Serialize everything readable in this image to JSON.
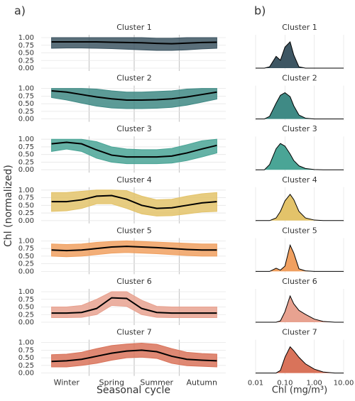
{
  "chart_data": [
    {
      "type": "line",
      "panel_label": "a)",
      "xlabel": "Seasonal cycle",
      "ylabel": "Chl (normalized)",
      "categories": [
        "Winter",
        "Spring",
        "Summer",
        "Autumn"
      ],
      "ylim": [
        0,
        1
      ],
      "yticks": [
        {
          "value": 0,
          "label": "0.00"
        },
        {
          "value": 0.25,
          "label": "0.25"
        },
        {
          "value": 0.5,
          "label": "0.50"
        },
        {
          "value": 0.75,
          "label": "0.75"
        },
        {
          "value": 1,
          "label": "1.00"
        }
      ],
      "grid": true,
      "line_color": "#000000",
      "panels": [
        {
          "title": "Cluster 1",
          "color": "#3d5663",
          "mean": [
            0.86,
            0.86,
            0.86,
            0.86,
            0.85,
            0.84,
            0.83,
            0.81,
            0.8,
            0.82,
            0.84,
            0.85
          ],
          "lower": [
            0.65,
            0.66,
            0.66,
            0.65,
            0.64,
            0.62,
            0.6,
            0.58,
            0.58,
            0.6,
            0.63,
            0.65
          ],
          "upper": [
            1,
            1,
            1,
            1,
            1,
            1,
            1,
            0.98,
            0.98,
            1,
            1,
            1
          ]
        },
        {
          "title": "Cluster 2",
          "color": "#3f8a85",
          "mean": [
            0.92,
            0.88,
            0.8,
            0.72,
            0.66,
            0.62,
            0.62,
            0.63,
            0.66,
            0.72,
            0.8,
            0.88
          ],
          "lower": [
            0.7,
            0.62,
            0.52,
            0.42,
            0.36,
            0.34,
            0.34,
            0.35,
            0.38,
            0.45,
            0.55,
            0.65
          ],
          "upper": [
            1,
            1,
            1,
            0.98,
            0.92,
            0.88,
            0.88,
            0.9,
            0.92,
            0.98,
            1,
            1
          ]
        },
        {
          "title": "Cluster 3",
          "color": "#4aa596",
          "mean": [
            0.85,
            0.9,
            0.85,
            0.65,
            0.48,
            0.42,
            0.42,
            0.42,
            0.45,
            0.55,
            0.68,
            0.8
          ],
          "lower": [
            0.6,
            0.68,
            0.6,
            0.38,
            0.25,
            0.2,
            0.2,
            0.2,
            0.22,
            0.3,
            0.42,
            0.55
          ],
          "upper": [
            1,
            1,
            1,
            0.92,
            0.75,
            0.68,
            0.66,
            0.66,
            0.7,
            0.82,
            0.95,
            1
          ]
        },
        {
          "title": "Cluster 4",
          "color": "#e3c36a",
          "mean": [
            0.62,
            0.62,
            0.68,
            0.8,
            0.82,
            0.7,
            0.5,
            0.4,
            0.42,
            0.5,
            0.58,
            0.62
          ],
          "lower": [
            0.3,
            0.32,
            0.4,
            0.55,
            0.55,
            0.4,
            0.22,
            0.15,
            0.16,
            0.22,
            0.28,
            0.3
          ],
          "upper": [
            0.92,
            0.92,
            0.96,
            1,
            1,
            0.98,
            0.8,
            0.68,
            0.7,
            0.8,
            0.88,
            0.92
          ]
        },
        {
          "title": "Cluster 5",
          "color": "#f0a060",
          "mean": [
            0.7,
            0.68,
            0.7,
            0.75,
            0.8,
            0.82,
            0.8,
            0.78,
            0.75,
            0.72,
            0.7,
            0.7
          ],
          "lower": [
            0.5,
            0.48,
            0.5,
            0.55,
            0.6,
            0.62,
            0.6,
            0.58,
            0.55,
            0.52,
            0.5,
            0.5
          ],
          "upper": [
            0.9,
            0.88,
            0.9,
            0.95,
            0.98,
            1,
            0.98,
            0.96,
            0.94,
            0.92,
            0.9,
            0.9
          ]
        },
        {
          "title": "Cluster 6",
          "color": "#e8a290",
          "mean": [
            0.3,
            0.3,
            0.32,
            0.45,
            0.8,
            0.78,
            0.45,
            0.32,
            0.3,
            0.3,
            0.3,
            0.3
          ],
          "lower": [
            0.15,
            0.15,
            0.16,
            0.25,
            0.55,
            0.52,
            0.25,
            0.16,
            0.15,
            0.15,
            0.15,
            0.15
          ],
          "upper": [
            0.5,
            0.5,
            0.55,
            0.75,
            1,
            1,
            0.72,
            0.52,
            0.5,
            0.5,
            0.5,
            0.5
          ]
        },
        {
          "title": "Cluster 7",
          "color": "#d9735a",
          "mean": [
            0.38,
            0.4,
            0.45,
            0.55,
            0.65,
            0.72,
            0.75,
            0.7,
            0.55,
            0.45,
            0.42,
            0.4
          ],
          "lower": [
            0.2,
            0.2,
            0.25,
            0.32,
            0.42,
            0.5,
            0.52,
            0.48,
            0.32,
            0.24,
            0.22,
            0.2
          ],
          "upper": [
            0.6,
            0.62,
            0.68,
            0.8,
            0.9,
            0.95,
            0.98,
            0.94,
            0.8,
            0.68,
            0.64,
            0.62
          ]
        }
      ]
    },
    {
      "type": "density",
      "panel_label": "b)",
      "xlabel": "Chl (mg/m³)",
      "log_x": true,
      "grid": true,
      "xlim": [
        0.01,
        10
      ],
      "xticks": [
        {
          "value": 0.01,
          "label": "0.01"
        },
        {
          "value": 0.1,
          "label": "0.10"
        },
        {
          "value": 1,
          "label": "1.00"
        },
        {
          "value": 10,
          "label": "10.00"
        }
      ],
      "x": [
        0.01,
        0.02,
        0.03,
        0.05,
        0.07,
        0.1,
        0.15,
        0.2,
        0.3,
        0.5,
        1,
        2,
        5,
        10
      ],
      "panels": [
        {
          "title": "Cluster 1",
          "color": "#3d5663",
          "values": [
            0,
            0,
            0.05,
            0.45,
            0.3,
            0.8,
            1,
            0.5,
            0.05,
            0,
            0,
            0,
            0,
            0
          ]
        },
        {
          "title": "Cluster 2",
          "color": "#3f8a85",
          "values": [
            0,
            0,
            0.1,
            0.6,
            0.9,
            1,
            0.85,
            0.5,
            0.15,
            0.03,
            0,
            0,
            0,
            0
          ]
        },
        {
          "title": "Cluster 3",
          "color": "#4aa596",
          "values": [
            0,
            0,
            0.2,
            0.8,
            1,
            0.9,
            0.6,
            0.35,
            0.15,
            0.05,
            0.01,
            0,
            0,
            0
          ]
        },
        {
          "title": "Cluster 4",
          "color": "#e3c36a",
          "values": [
            0,
            0,
            0,
            0.1,
            0.35,
            0.75,
            1,
            0.8,
            0.35,
            0.1,
            0.02,
            0,
            0,
            0
          ]
        },
        {
          "title": "Cluster 5",
          "color": "#f0a060",
          "values": [
            0,
            0,
            0,
            0.12,
            0.05,
            0.2,
            1,
            0.7,
            0.1,
            0.02,
            0,
            0,
            0,
            0
          ]
        },
        {
          "title": "Cluster 6",
          "color": "#e8a290",
          "values": [
            0,
            0,
            0,
            0,
            0.05,
            0.4,
            1,
            0.7,
            0.45,
            0.3,
            0.12,
            0.03,
            0,
            0
          ]
        },
        {
          "title": "Cluster 7",
          "color": "#d9735a",
          "values": [
            0,
            0,
            0,
            0,
            0.1,
            0.6,
            1,
            0.85,
            0.6,
            0.35,
            0.15,
            0.04,
            0,
            0
          ]
        }
      ]
    }
  ]
}
